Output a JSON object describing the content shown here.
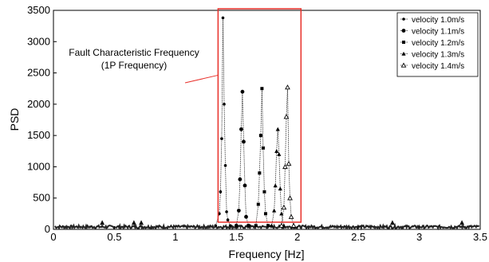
{
  "chart_data": {
    "type": "line",
    "xlabel": "Frequency [Hz]",
    "ylabel": "PSD",
    "xlim": [
      0,
      3.5
    ],
    "ylim": [
      0,
      3500
    ],
    "xticks": [
      0,
      0.5,
      1,
      1.5,
      2,
      2.5,
      3,
      3.5
    ],
    "xtick_labels": [
      "0",
      "0.5",
      "1",
      "1.5",
      "2",
      "2.5",
      "3",
      "3.5"
    ],
    "yticks": [
      0,
      500,
      1000,
      1500,
      2000,
      2500,
      3000,
      3500
    ],
    "ytick_labels": [
      "0",
      "500",
      "1000",
      "1500",
      "2000",
      "2500",
      "3000",
      "3500"
    ],
    "grid": false,
    "legend_position": "top-right",
    "annotation": {
      "lines": [
        "Fault Characteristic Frequency",
        "(1P Frequency)"
      ],
      "box_x_range": [
        1.35,
        2.03
      ],
      "arrow_target": [
        1.35,
        1000
      ],
      "box_color": "#e8302a"
    },
    "series": [
      {
        "name": "velocity 1.0m/s",
        "marker": "dot",
        "x": [
          1.33,
          1.36,
          1.37,
          1.38,
          1.39,
          1.4,
          1.41,
          1.42,
          1.43,
          1.45
        ],
        "values": [
          60,
          250,
          600,
          1450,
          3380,
          2000,
          1020,
          280,
          150,
          60
        ]
      },
      {
        "name": "velocity 1.1m/s",
        "marker": "circle",
        "x": [
          1.5,
          1.52,
          1.53,
          1.54,
          1.55,
          1.56,
          1.57,
          1.58,
          1.6
        ],
        "values": [
          60,
          300,
          800,
          1600,
          2200,
          1400,
          700,
          200,
          60
        ]
      },
      {
        "name": "velocity 1.2m/s",
        "marker": "square",
        "x": [
          1.66,
          1.68,
          1.69,
          1.7,
          1.71,
          1.72,
          1.73,
          1.74,
          1.76
        ],
        "values": [
          60,
          400,
          900,
          1500,
          2250,
          1300,
          600,
          250,
          60
        ]
      },
      {
        "name": "velocity 1.3m/s",
        "marker": "triangle-filled",
        "x": [
          1.79,
          1.81,
          1.82,
          1.83,
          1.84,
          1.85,
          1.86,
          1.87,
          1.89
        ],
        "values": [
          60,
          300,
          700,
          1250,
          1600,
          1200,
          650,
          250,
          60
        ]
      },
      {
        "name": "velocity 1.4m/s",
        "marker": "triangle-open",
        "x": [
          1.87,
          1.89,
          1.9,
          1.91,
          1.92,
          1.93,
          1.94,
          1.95,
          1.97
        ],
        "values": [
          60,
          350,
          1000,
          1800,
          2270,
          1050,
          500,
          200,
          60
        ]
      }
    ],
    "noise_floor": 50
  }
}
